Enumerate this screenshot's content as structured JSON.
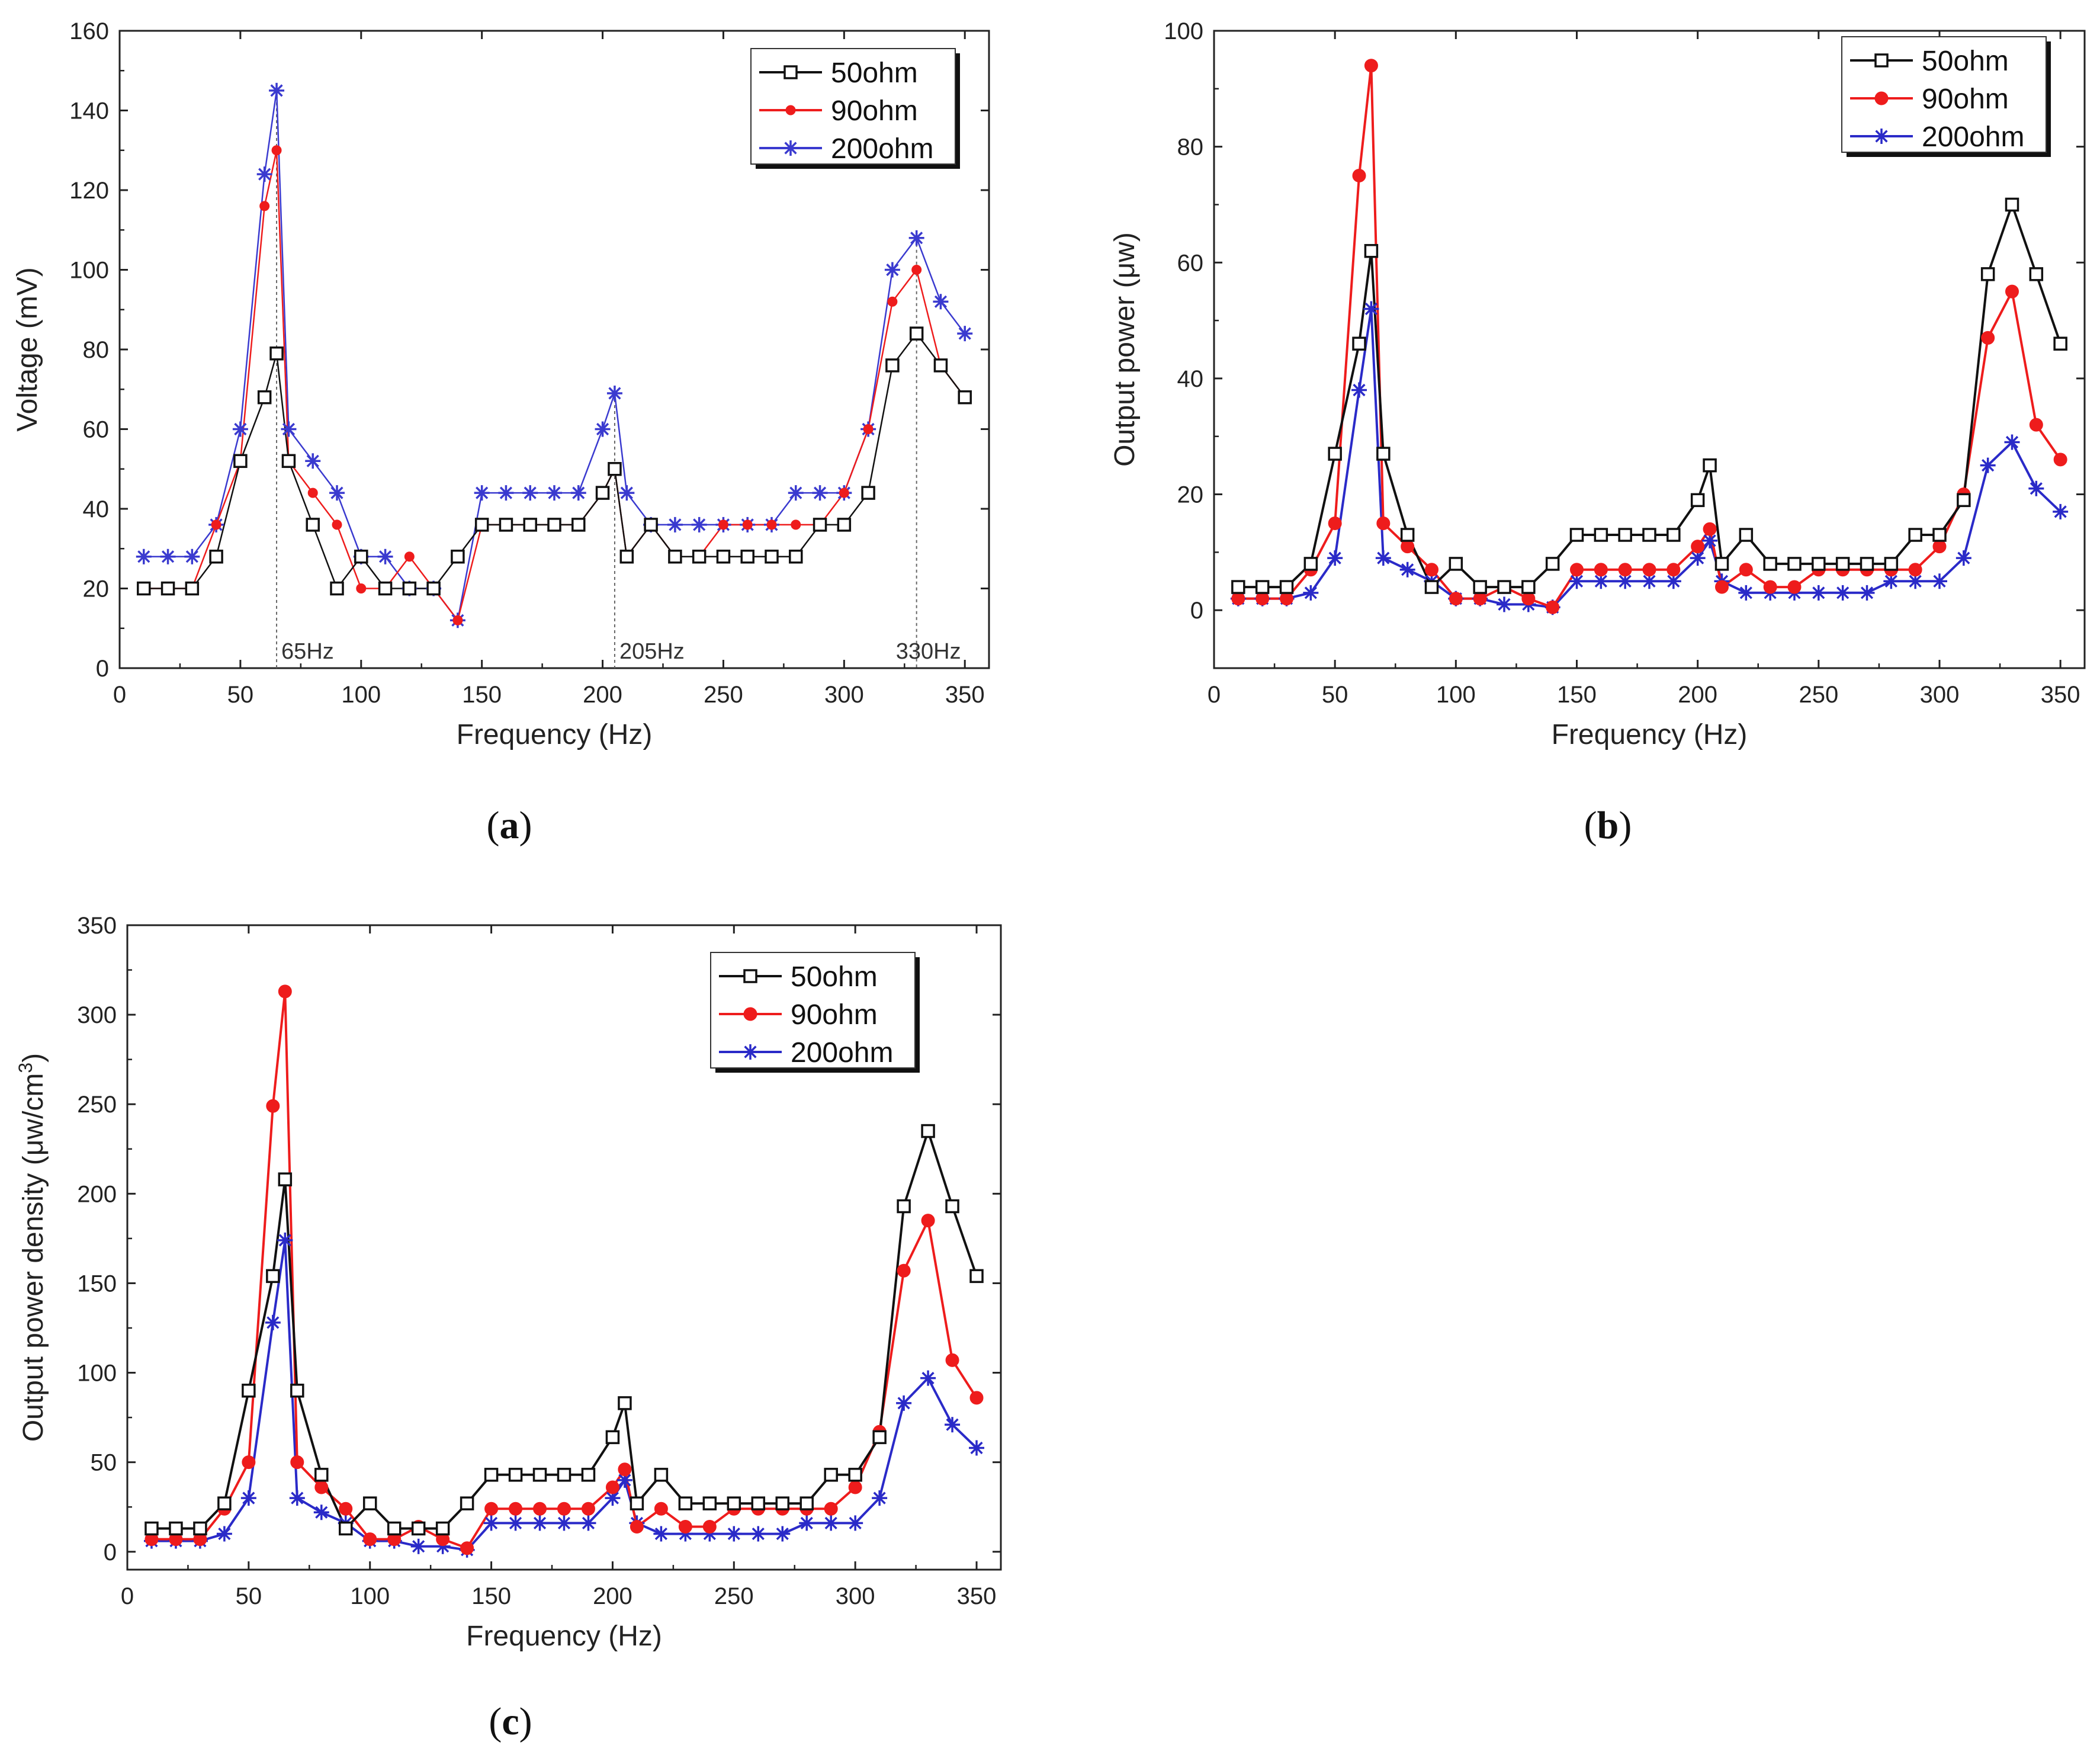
{
  "colors": {
    "c50": "#111111",
    "c90": "#ee1c1c",
    "c200": "#2a2ac8",
    "c200a": "#3a3acf"
  },
  "chart_data": [
    {
      "id": "a",
      "type": "line",
      "caption_letter": "a",
      "xlabel": "Frequency (Hz)",
      "ylabel": "Voltage (mV)",
      "xlim": [
        0,
        360
      ],
      "ylim": [
        0,
        160
      ],
      "xticks": [
        0,
        50,
        100,
        150,
        200,
        250,
        300,
        350
      ],
      "yticks": [
        0,
        20,
        40,
        60,
        80,
        100,
        120,
        140,
        160
      ],
      "legend_position": "top-right",
      "annotations": [
        {
          "x": 65,
          "text": "65Hz"
        },
        {
          "x": 205,
          "text": "205Hz"
        },
        {
          "x": 330,
          "text": "330Hz"
        }
      ],
      "series": [
        {
          "name": "50ohm",
          "color_key": "c50",
          "marker": "square",
          "x": [
            10,
            20,
            30,
            40,
            50,
            60,
            65,
            70,
            80,
            90,
            100,
            110,
            120,
            130,
            140,
            150,
            160,
            170,
            180,
            190,
            200,
            205,
            210,
            220,
            230,
            240,
            250,
            260,
            270,
            280,
            290,
            300,
            310,
            320,
            330,
            340,
            350
          ],
          "y": [
            20,
            20,
            20,
            28,
            52,
            68,
            79,
            52,
            36,
            20,
            28,
            20,
            20,
            20,
            28,
            36,
            36,
            36,
            36,
            36,
            44,
            50,
            28,
            36,
            28,
            28,
            28,
            28,
            28,
            28,
            36,
            36,
            44,
            76,
            84,
            76,
            68
          ]
        },
        {
          "name": "90ohm",
          "color_key": "c90",
          "marker": "circle-small",
          "x": [
            10,
            20,
            30,
            40,
            50,
            60,
            65,
            70,
            80,
            90,
            100,
            110,
            120,
            130,
            140,
            150,
            160,
            170,
            180,
            190,
            200,
            205,
            210,
            220,
            230,
            240,
            250,
            260,
            270,
            280,
            290,
            300,
            310,
            320,
            330,
            340,
            350
          ],
          "y": [
            20,
            20,
            20,
            36,
            52,
            116,
            130,
            52,
            44,
            36,
            20,
            20,
            28,
            20,
            12,
            36,
            36,
            36,
            36,
            36,
            44,
            50,
            28,
            36,
            28,
            28,
            36,
            36,
            36,
            36,
            36,
            44,
            60,
            92,
            100,
            76,
            68
          ]
        },
        {
          "name": "200ohm",
          "color_key": "c200a",
          "marker": "star",
          "x": [
            10,
            20,
            30,
            40,
            50,
            60,
            65,
            70,
            80,
            90,
            100,
            110,
            120,
            130,
            140,
            150,
            160,
            170,
            180,
            190,
            200,
            205,
            210,
            220,
            230,
            240,
            250,
            260,
            270,
            280,
            290,
            300,
            310,
            320,
            330,
            340,
            350
          ],
          "y": [
            28,
            28,
            28,
            36,
            60,
            124,
            145,
            60,
            52,
            44,
            28,
            28,
            20,
            20,
            12,
            44,
            44,
            44,
            44,
            44,
            60,
            69,
            44,
            36,
            36,
            36,
            36,
            36,
            36,
            44,
            44,
            44,
            60,
            100,
            108,
            92,
            84
          ]
        }
      ]
    },
    {
      "id": "b",
      "type": "line",
      "caption_letter": "b",
      "xlabel": "Frequency (Hz)",
      "ylabel": "Output power (μw)",
      "xlim": [
        0,
        360
      ],
      "ylim": [
        -10,
        100
      ],
      "xticks": [
        0,
        50,
        100,
        150,
        200,
        250,
        300,
        350
      ],
      "yticks": [
        0,
        20,
        40,
        60,
        80,
        100
      ],
      "legend_position": "top-right",
      "series": [
        {
          "name": "50ohm",
          "color_key": "c50",
          "marker": "square",
          "x": [
            10,
            20,
            30,
            40,
            50,
            60,
            65,
            70,
            80,
            90,
            100,
            110,
            120,
            130,
            140,
            150,
            160,
            170,
            180,
            190,
            200,
            205,
            210,
            220,
            230,
            240,
            250,
            260,
            270,
            280,
            290,
            300,
            310,
            320,
            330,
            340,
            350
          ],
          "y": [
            4,
            4,
            4,
            8,
            27,
            46,
            62,
            27,
            13,
            4,
            8,
            4,
            4,
            4,
            8,
            13,
            13,
            13,
            13,
            13,
            19,
            25,
            8,
            13,
            8,
            8,
            8,
            8,
            8,
            8,
            13,
            13,
            19,
            58,
            70,
            58,
            46
          ]
        },
        {
          "name": "90ohm",
          "color_key": "c90",
          "marker": "circle",
          "x": [
            10,
            20,
            30,
            40,
            50,
            60,
            65,
            70,
            80,
            90,
            100,
            110,
            120,
            130,
            140,
            150,
            160,
            170,
            180,
            190,
            200,
            205,
            210,
            220,
            230,
            240,
            250,
            260,
            270,
            280,
            290,
            300,
            310,
            320,
            330,
            340,
            350
          ],
          "y": [
            2,
            2,
            2,
            7,
            15,
            75,
            94,
            15,
            11,
            7,
            2,
            2,
            4,
            2,
            0.5,
            7,
            7,
            7,
            7,
            7,
            11,
            14,
            4,
            7,
            4,
            4,
            7,
            7,
            7,
            7,
            7,
            11,
            20,
            47,
            55,
            32,
            26
          ]
        },
        {
          "name": "200ohm",
          "color_key": "c200",
          "marker": "star",
          "x": [
            10,
            20,
            30,
            40,
            50,
            60,
            65,
            70,
            80,
            90,
            100,
            110,
            120,
            130,
            140,
            150,
            160,
            170,
            180,
            190,
            200,
            205,
            210,
            220,
            230,
            240,
            250,
            260,
            270,
            280,
            290,
            300,
            310,
            320,
            330,
            340,
            350
          ],
          "y": [
            2,
            2,
            2,
            3,
            9,
            38,
            52,
            9,
            7,
            5,
            2,
            2,
            1,
            1,
            0.5,
            5,
            5,
            5,
            5,
            5,
            9,
            12,
            5,
            3,
            3,
            3,
            3,
            3,
            3,
            5,
            5,
            5,
            9,
            25,
            29,
            21,
            17
          ]
        }
      ]
    },
    {
      "id": "c",
      "type": "line",
      "caption_letter": "c",
      "xlabel": "Frequency (Hz)",
      "ylabel_main": "Output power density (μw/cm",
      "ylabel_sup": "3",
      "ylabel_end": ")",
      "xlim": [
        0,
        360
      ],
      "ylim": [
        -10,
        350
      ],
      "xticks": [
        0,
        50,
        100,
        150,
        200,
        250,
        300,
        350
      ],
      "yticks": [
        0,
        50,
        100,
        150,
        200,
        250,
        300,
        350
      ],
      "legend_position": "top-right",
      "series": [
        {
          "name": "50ohm",
          "color_key": "c50",
          "marker": "square",
          "x": [
            10,
            20,
            30,
            40,
            50,
            60,
            65,
            70,
            80,
            90,
            100,
            110,
            120,
            130,
            140,
            150,
            160,
            170,
            180,
            190,
            200,
            205,
            210,
            220,
            230,
            240,
            250,
            260,
            270,
            280,
            290,
            300,
            310,
            320,
            330,
            340,
            350
          ],
          "y": [
            13,
            13,
            13,
            27,
            90,
            154,
            208,
            90,
            43,
            13,
            27,
            13,
            13,
            13,
            27,
            43,
            43,
            43,
            43,
            43,
            64,
            83,
            27,
            43,
            27,
            27,
            27,
            27,
            27,
            27,
            43,
            43,
            64,
            193,
            235,
            193,
            154
          ]
        },
        {
          "name": "90ohm",
          "color_key": "c90",
          "marker": "circle",
          "x": [
            10,
            20,
            30,
            40,
            50,
            60,
            65,
            70,
            80,
            90,
            100,
            110,
            120,
            130,
            140,
            150,
            160,
            170,
            180,
            190,
            200,
            205,
            210,
            220,
            230,
            240,
            250,
            260,
            270,
            280,
            290,
            300,
            310,
            320,
            330,
            340,
            350
          ],
          "y": [
            7,
            7,
            7,
            24,
            50,
            249,
            313,
            50,
            36,
            24,
            7,
            7,
            14,
            7,
            2,
            24,
            24,
            24,
            24,
            24,
            36,
            46,
            14,
            24,
            14,
            14,
            24,
            24,
            24,
            24,
            24,
            36,
            67,
            157,
            185,
            107,
            86
          ]
        },
        {
          "name": "200ohm",
          "color_key": "c200",
          "marker": "star",
          "x": [
            10,
            20,
            30,
            40,
            50,
            60,
            65,
            70,
            80,
            90,
            100,
            110,
            120,
            130,
            140,
            150,
            160,
            170,
            180,
            190,
            200,
            205,
            210,
            220,
            230,
            240,
            250,
            260,
            270,
            280,
            290,
            300,
            310,
            320,
            330,
            340,
            350
          ],
          "y": [
            6,
            6,
            6,
            10,
            30,
            128,
            174,
            30,
            22,
            16,
            6,
            6,
            3,
            3,
            1,
            16,
            16,
            16,
            16,
            16,
            30,
            40,
            16,
            10,
            10,
            10,
            10,
            10,
            10,
            16,
            16,
            16,
            30,
            83,
            97,
            71,
            58
          ]
        }
      ]
    }
  ]
}
